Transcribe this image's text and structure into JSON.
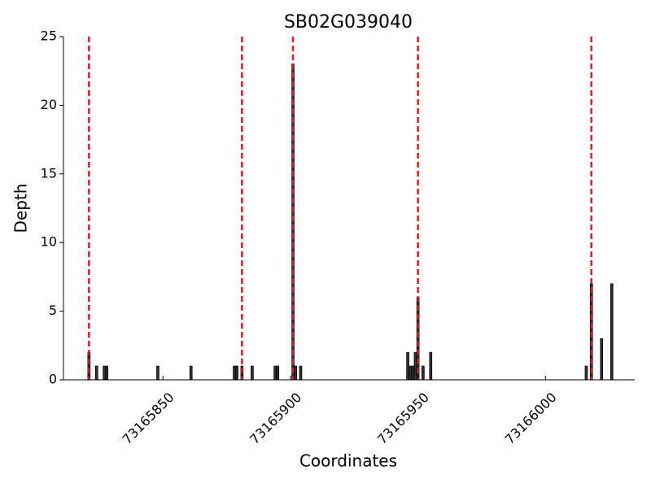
{
  "chart_data": {
    "type": "bar",
    "title": "SB02G039040",
    "x_label": "Coordinates",
    "y_label": "Depth",
    "x": [
      73165821,
      73165824,
      73165827,
      73165828,
      73165848,
      73165861,
      73165878,
      73165879,
      73165881,
      73165885,
      73165894,
      73165895,
      73165901,
      73165902,
      73165904,
      73165946,
      73165947,
      73165948,
      73165949,
      73165950,
      73165952,
      73165955,
      73166016,
      73166018,
      73166022,
      73166026
    ],
    "values": [
      2,
      1,
      1,
      1,
      1,
      1,
      1,
      1,
      1,
      1,
      1,
      1,
      23,
      1,
      1,
      2,
      1,
      1,
      2,
      6,
      1,
      2,
      1,
      7,
      3,
      7
    ],
    "color": "#333333",
    "vlines": [
      73165821,
      73165881,
      73165901,
      73165950,
      73166018
    ],
    "vline_color": "#e41a1c",
    "xlim": [
      73165811,
      73166035
    ],
    "xticks": [
      73165850,
      73165900,
      73165950,
      73166000
    ],
    "ylim": [
      0,
      25
    ],
    "yticks": [
      0,
      5,
      10,
      15,
      20,
      25
    ]
  }
}
